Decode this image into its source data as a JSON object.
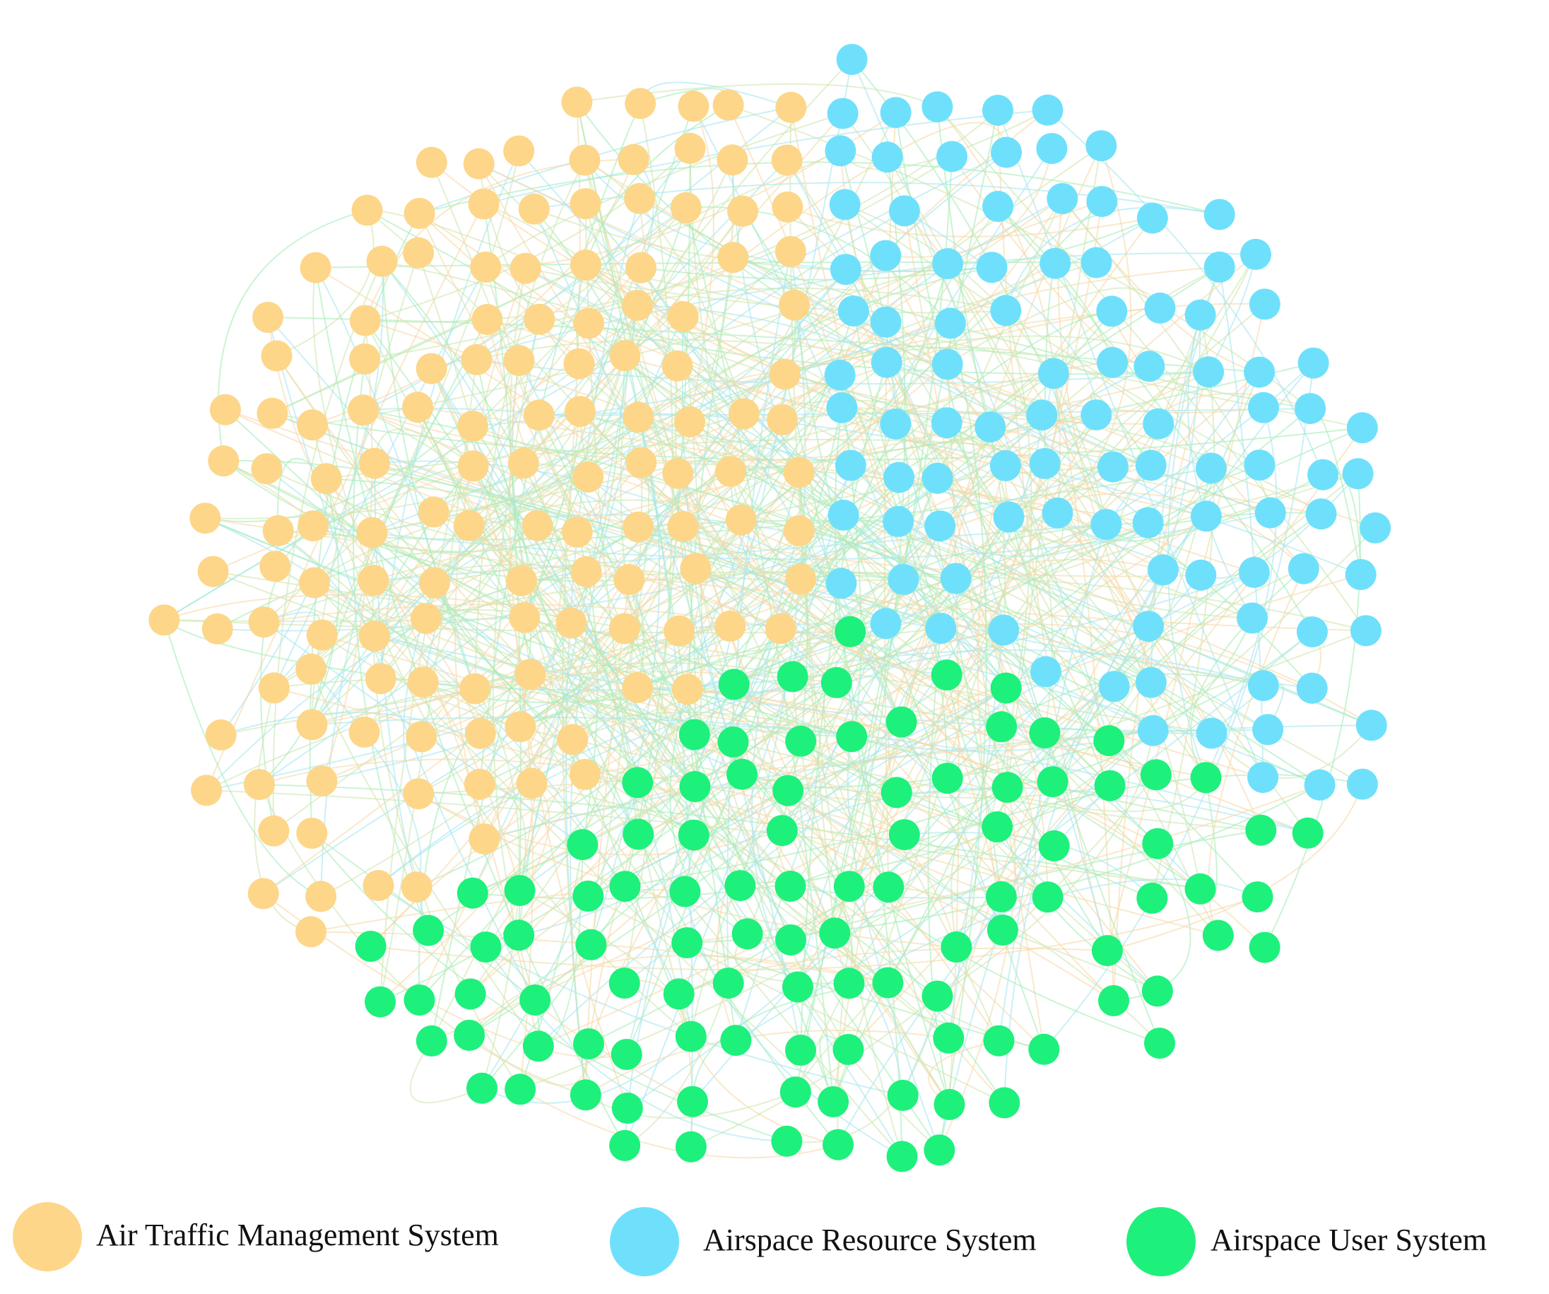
{
  "legend": [
    {
      "label": "Air Traffic Management System",
      "color": "#fdd689"
    },
    {
      "label": "Airspace Resource System",
      "color": "#6fe0fb"
    },
    {
      "label": "Airspace User System",
      "color": "#1ef07c"
    }
  ]
}
